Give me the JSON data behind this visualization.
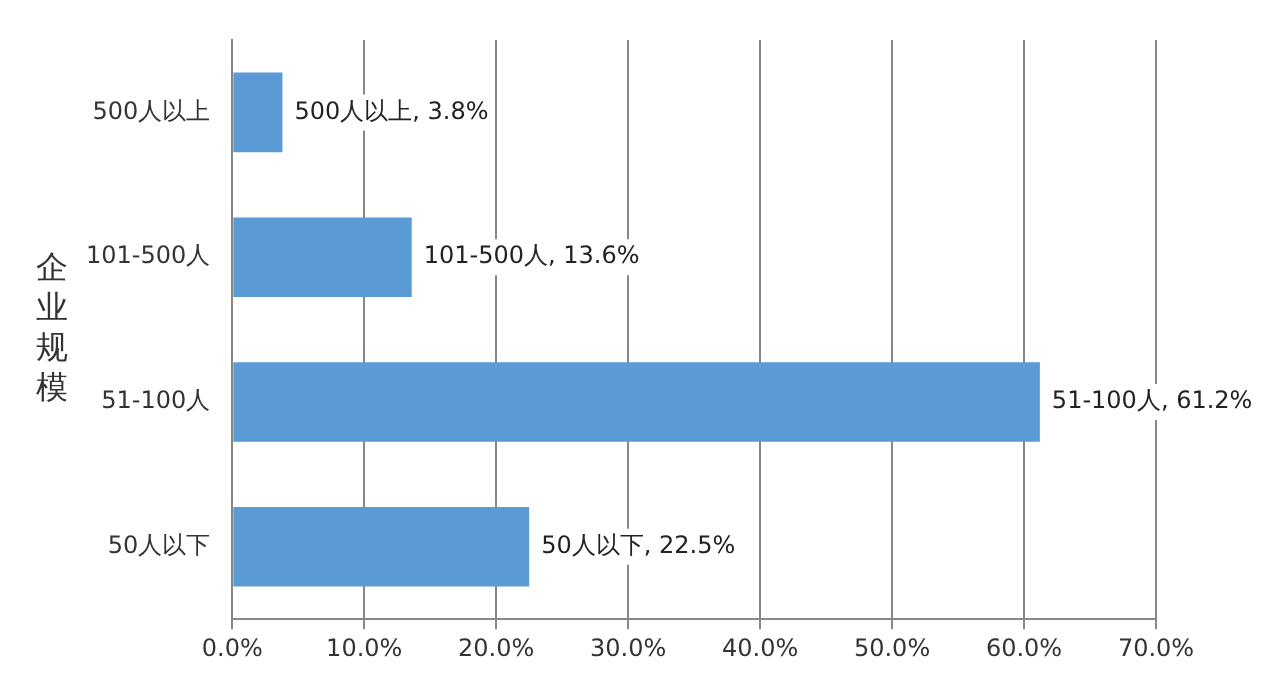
{
  "chart_data": {
    "type": "bar",
    "orientation": "horizontal",
    "ylabel": "企业规模",
    "categories": [
      "500人以上",
      "101-500人",
      "51-100人",
      "50人以下"
    ],
    "values": [
      3.8,
      13.6,
      61.2,
      22.5
    ],
    "color": "#5b9bd5",
    "value_labels": [
      "500人以上, 3.8%",
      "101-500人, 13.6%",
      "51-100人, 61.2%",
      "50人以下, 22.5%"
    ],
    "xlim": [
      0,
      70
    ],
    "xticks": [
      {
        "value": 0,
        "label": "0.0%"
      },
      {
        "value": 10,
        "label": "10.0%"
      },
      {
        "value": 20,
        "label": "20.0%"
      },
      {
        "value": 30,
        "label": "30.0%"
      },
      {
        "value": 40,
        "label": "40.0%"
      },
      {
        "value": 50,
        "label": "50.0%"
      },
      {
        "value": 60,
        "label": "60.0%"
      },
      {
        "value": 70,
        "label": "70.0%"
      }
    ],
    "grid": "x",
    "legend": false
  }
}
